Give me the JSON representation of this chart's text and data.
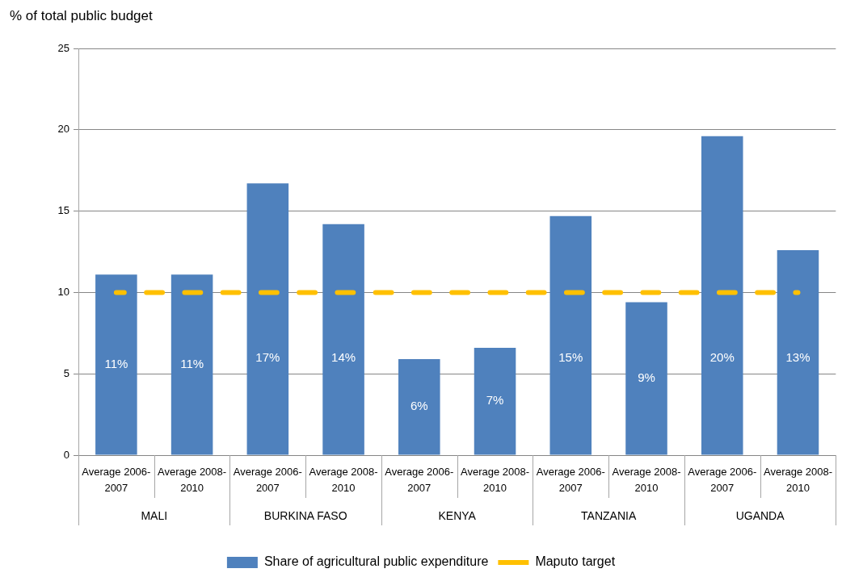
{
  "chart_data": {
    "type": "bar",
    "ylabel": "% of total public budget",
    "categories": [
      "Average 2006-2007",
      "Average 2008-2010",
      "Average 2006-2007",
      "Average 2008-2010",
      "Average 2006-2007",
      "Average 2008-2010",
      "Average 2006-2007",
      "Average 2008-2010",
      "Average 2006-2007",
      "Average 2008-2010"
    ],
    "series": [
      {
        "name": "Share of agricultural public expenditure",
        "color": "#4f81bd",
        "values": [
          11.1,
          11.1,
          16.7,
          14.2,
          5.9,
          6.6,
          14.7,
          9.4,
          19.6,
          12.6
        ],
        "value_labels": [
          "11%",
          "11%",
          "17%",
          "14%",
          "6%",
          "7%",
          "15%",
          "9%",
          "20%",
          "13%"
        ]
      },
      {
        "name": "Maputo target",
        "type": "line",
        "color": "#ffc000",
        "values": [
          10,
          10,
          10,
          10,
          10,
          10,
          10,
          10,
          10,
          10
        ]
      }
    ],
    "annotations": [
      "MALI",
      "BURKINA FASO",
      "KENYA",
      "TANZANIA",
      "UGANDA"
    ],
    "ylim": [
      0,
      25
    ],
    "yticks": [
      0,
      5,
      10,
      15,
      20,
      25
    ],
    "grid": "y",
    "legend": "bottom",
    "marker": "none",
    "line_style": "dashed"
  }
}
